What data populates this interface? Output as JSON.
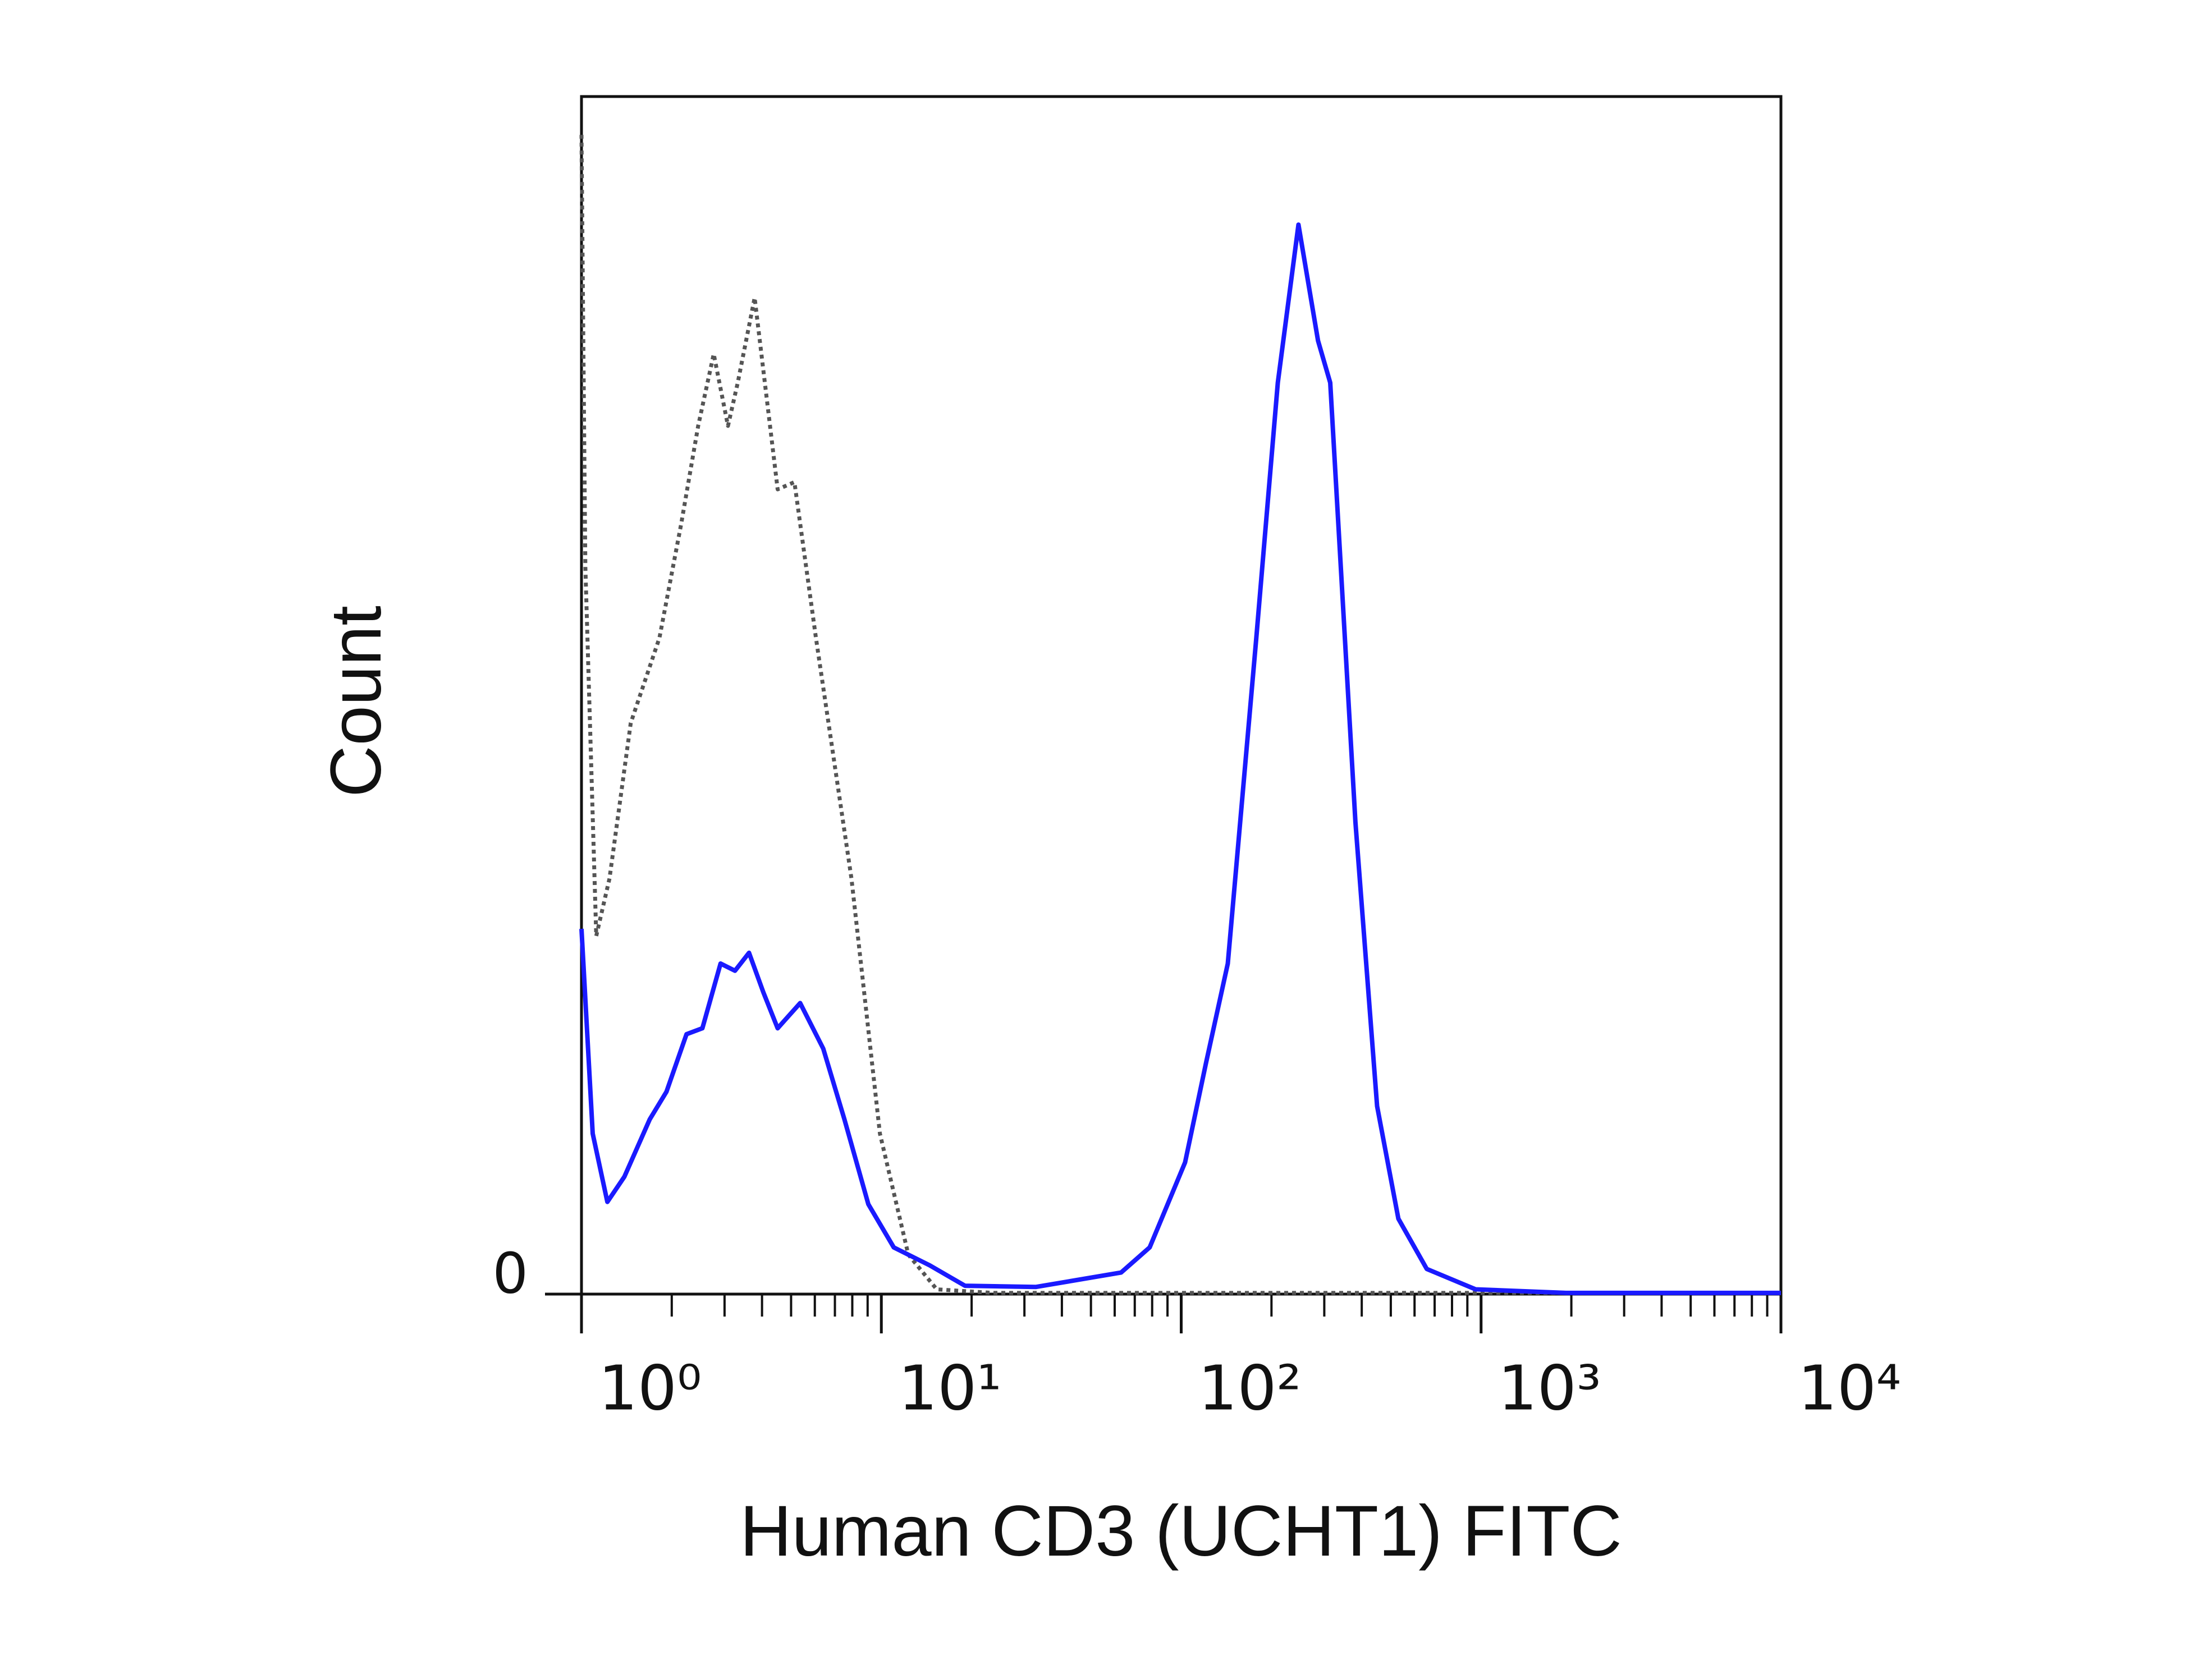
{
  "chart_data": {
    "type": "line",
    "x_label": "Human CD3 (UCHT1) FITC",
    "y_label": "Count",
    "xscale": "log",
    "xlim": [
      1,
      10000
    ],
    "xticks": [
      {
        "value": 1,
        "label": "10⁰"
      },
      {
        "value": 10,
        "label": "10¹"
      },
      {
        "value": 100,
        "label": "10²"
      },
      {
        "value": 1000,
        "label": "10³"
      },
      {
        "value": 10000,
        "label": "10⁴"
      }
    ],
    "ylim": [
      0,
      100
    ],
    "yticks": [
      0
    ],
    "series": [
      {
        "color": "#555555",
        "style": "dotted",
        "x": [
          1,
          1.03,
          1.12,
          1.24,
          1.46,
          1.82,
          2.15,
          2.45,
          2.76,
          3.08,
          3.32,
          3.78,
          4.51,
          5.13,
          6.05,
          7.95,
          9.89,
          12.3,
          15.3,
          23.6,
          10000
        ],
        "values": [
          96.8,
          60.7,
          29.9,
          34.7,
          47.7,
          54.8,
          64.3,
          72.5,
          78.5,
          72.5,
          76.1,
          83.2,
          67.2,
          67.8,
          54.8,
          34.7,
          13.4,
          3.3,
          0.4,
          0.1,
          0.1
        ]
      },
      {
        "color": "#1a1aff",
        "style": "solid",
        "x": [
          1,
          1.09,
          1.22,
          1.39,
          1.69,
          1.92,
          2.24,
          2.53,
          2.91,
          3.25,
          3.62,
          4.04,
          4.51,
          5.36,
          6.4,
          7.53,
          9.05,
          11,
          14.5,
          19,
          32.8,
          63,
          78.5,
          103,
          121,
          143,
          178,
          210,
          246,
          286,
          314,
          381,
          450,
          530,
          659,
          959,
          1920,
          10000
        ],
        "values": [
          30.5,
          13.4,
          7.7,
          9.8,
          14.6,
          16.9,
          21.7,
          22.2,
          27.6,
          27,
          28.5,
          25.2,
          22.2,
          24.3,
          20.5,
          14.6,
          7.5,
          3.9,
          2.4,
          0.7,
          0.6,
          1.8,
          3.9,
          11,
          19.3,
          27.6,
          54.8,
          76.1,
          89.3,
          79.6,
          76.1,
          39.4,
          15.7,
          6.3,
          2.1,
          0.4,
          0.1,
          0.1
        ]
      }
    ]
  }
}
